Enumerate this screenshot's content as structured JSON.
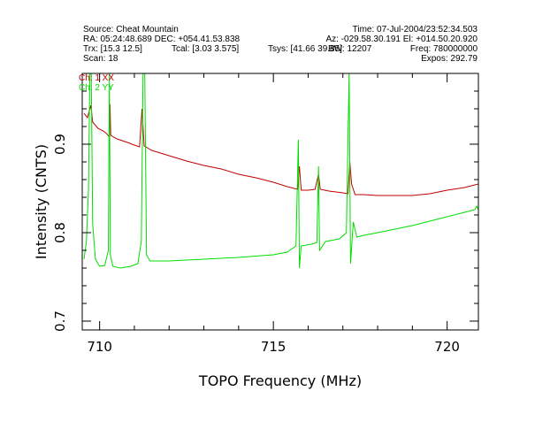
{
  "header": {
    "source": "Source: Cheat Mountain",
    "time": "Time: 07-Jul-2004/23:52:34.503",
    "ra_dec": "RA: 05:24:48.689 DEC: +054.41.53.838",
    "az_el": "Az: -029.58.30.191 El: +014.50.20.920",
    "trx": "Trx: [15.3 12.5]",
    "tcal": "Tcal: [3.03 3.575]",
    "tsys": "Tsys: [41.66 39.85]",
    "bw": "BW: 12207",
    "freq": "Freq: 780000000",
    "scan": "Scan: 18",
    "expos": "Expos: 292.79"
  },
  "chart_data": {
    "type": "line",
    "title": "",
    "xlabel": "TOPO Frequency (MHz)",
    "ylabel": "Intensity (CNTS)",
    "xlim": [
      709.5,
      720.9
    ],
    "ylim": [
      0.69,
      0.98
    ],
    "x_ticks": [
      710,
      715,
      720
    ],
    "y_ticks": [
      0.7,
      0.8,
      0.9
    ],
    "x_minor_step": 1,
    "y_minor_step": 0.02,
    "grid": false,
    "legend_placement": "top-left",
    "series": [
      {
        "name": "Ch: 1 XX",
        "color": "#c00000",
        "points": [
          [
            709.55,
            0.935
          ],
          [
            709.65,
            0.93
          ],
          [
            709.75,
            0.944
          ],
          [
            709.8,
            0.925
          ],
          [
            709.95,
            0.918
          ],
          [
            710.1,
            0.915
          ],
          [
            710.2,
            0.912
          ],
          [
            710.28,
            0.908
          ],
          [
            710.3,
            0.945
          ],
          [
            710.32,
            0.91
          ],
          [
            710.5,
            0.906
          ],
          [
            710.8,
            0.902
          ],
          [
            711.0,
            0.899
          ],
          [
            711.15,
            0.897
          ],
          [
            711.22,
            0.94
          ],
          [
            711.28,
            0.898
          ],
          [
            711.5,
            0.893
          ],
          [
            712.0,
            0.887
          ],
          [
            712.5,
            0.881
          ],
          [
            713.0,
            0.876
          ],
          [
            713.5,
            0.872
          ],
          [
            714.0,
            0.866
          ],
          [
            714.5,
            0.862
          ],
          [
            715.0,
            0.857
          ],
          [
            715.4,
            0.852
          ],
          [
            715.7,
            0.849
          ],
          [
            715.75,
            0.875
          ],
          [
            715.8,
            0.848
          ],
          [
            716.0,
            0.848
          ],
          [
            716.2,
            0.849
          ],
          [
            716.3,
            0.866
          ],
          [
            716.35,
            0.849
          ],
          [
            716.6,
            0.847
          ],
          [
            717.0,
            0.845
          ],
          [
            717.15,
            0.844
          ],
          [
            717.2,
            0.88
          ],
          [
            717.25,
            0.855
          ],
          [
            717.35,
            0.843
          ],
          [
            717.6,
            0.843
          ],
          [
            718.0,
            0.842
          ],
          [
            718.5,
            0.842
          ],
          [
            719.0,
            0.842
          ],
          [
            719.5,
            0.844
          ],
          [
            720.0,
            0.848
          ],
          [
            720.5,
            0.851
          ],
          [
            720.9,
            0.855
          ]
        ]
      },
      {
        "name": "Ch: 2 YY",
        "color": "#00dd00",
        "points": [
          [
            709.55,
            0.77
          ],
          [
            709.62,
            0.79
          ],
          [
            709.68,
            0.85
          ],
          [
            709.72,
            0.98
          ],
          [
            709.76,
            0.98
          ],
          [
            709.8,
            0.81
          ],
          [
            709.88,
            0.77
          ],
          [
            710.0,
            0.762
          ],
          [
            710.15,
            0.763
          ],
          [
            710.25,
            0.78
          ],
          [
            710.28,
            0.98
          ],
          [
            710.31,
            0.775
          ],
          [
            710.38,
            0.762
          ],
          [
            710.6,
            0.76
          ],
          [
            710.9,
            0.762
          ],
          [
            711.1,
            0.765
          ],
          [
            711.2,
            0.79
          ],
          [
            711.25,
            0.98
          ],
          [
            711.3,
            0.98
          ],
          [
            711.35,
            0.775
          ],
          [
            711.45,
            0.768
          ],
          [
            712.0,
            0.768
          ],
          [
            713.0,
            0.77
          ],
          [
            714.0,
            0.772
          ],
          [
            715.0,
            0.775
          ],
          [
            715.4,
            0.778
          ],
          [
            715.65,
            0.785
          ],
          [
            715.72,
            0.905
          ],
          [
            715.75,
            0.76
          ],
          [
            715.8,
            0.785
          ],
          [
            716.1,
            0.787
          ],
          [
            716.25,
            0.789
          ],
          [
            716.3,
            0.875
          ],
          [
            716.33,
            0.78
          ],
          [
            716.5,
            0.79
          ],
          [
            716.9,
            0.793
          ],
          [
            717.1,
            0.8
          ],
          [
            717.18,
            0.98
          ],
          [
            717.22,
            0.765
          ],
          [
            717.3,
            0.812
          ],
          [
            717.4,
            0.795
          ],
          [
            717.6,
            0.797
          ],
          [
            718.0,
            0.8
          ],
          [
            718.5,
            0.804
          ],
          [
            719.0,
            0.808
          ],
          [
            719.5,
            0.813
          ],
          [
            720.0,
            0.818
          ],
          [
            720.5,
            0.823
          ],
          [
            720.8,
            0.826
          ],
          [
            720.85,
            0.83
          ],
          [
            720.9,
            0.826
          ]
        ]
      }
    ]
  }
}
